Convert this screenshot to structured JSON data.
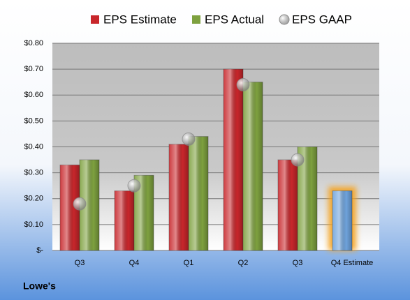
{
  "chart_data": {
    "type": "bar",
    "footer": "Lowe's",
    "categories": [
      "Q3",
      "Q4",
      "Q1",
      "Q2",
      "Q3",
      "Q4 Estimate"
    ],
    "series": [
      {
        "name": "EPS Estimate",
        "color": "#c8262b",
        "colors": [
          "#c8262b",
          "#c8262b",
          "#c8262b",
          "#c8262b",
          "#c8262b",
          "#6fa3dc"
        ],
        "highlight_color": "#f5a21f",
        "values": [
          0.33,
          0.23,
          0.41,
          0.7,
          0.35,
          0.23
        ]
      },
      {
        "name": "EPS Actual",
        "color": "#7ea13f",
        "values": [
          0.35,
          0.29,
          0.44,
          0.65,
          0.4,
          null
        ]
      },
      {
        "name": "EPS GAAP",
        "color": "#9a9a9a",
        "type": "scatter",
        "values": [
          0.18,
          0.25,
          0.43,
          0.64,
          0.35,
          null
        ]
      }
    ],
    "ylim": [
      0,
      0.8
    ],
    "yticks": [
      {
        "value": 0,
        "label": "$-"
      },
      {
        "value": 0.1,
        "label": "$0.10"
      },
      {
        "value": 0.2,
        "label": "$0.20"
      },
      {
        "value": 0.3,
        "label": "$0.30"
      },
      {
        "value": 0.4,
        "label": "$0.40"
      },
      {
        "value": 0.5,
        "label": "$0.50"
      },
      {
        "value": 0.6,
        "label": "$0.60"
      },
      {
        "value": 0.7,
        "label": "$0.70"
      },
      {
        "value": 0.8,
        "label": "$0.80"
      }
    ],
    "grid": true
  }
}
